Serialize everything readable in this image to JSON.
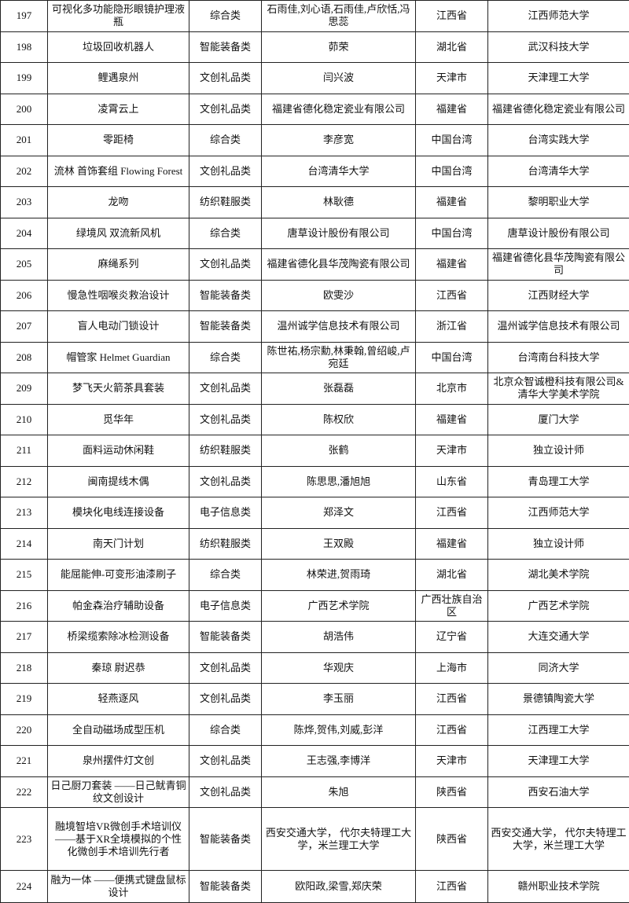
{
  "table": {
    "rows": [
      [
        197,
        "可视化多功能隐形眼镜护理液瓶",
        "综合类",
        "石雨佳,刘心语,石雨佳,卢欣恬,冯思蕊",
        "江西省",
        "江西师范大学"
      ],
      [
        198,
        "垃圾回收机器人",
        "智能装备类",
        "茆荣",
        "湖北省",
        "武汉科技大学"
      ],
      [
        199,
        "鲤遇泉州",
        "文创礼品类",
        "闫兴波",
        "天津市",
        "天津理工大学"
      ],
      [
        200,
        "凌霄云上",
        "文创礼品类",
        "福建省德化稳定瓷业有限公司",
        "福建省",
        "福建省德化稳定瓷业有限公司"
      ],
      [
        201,
        "零距椅",
        "综合类",
        "李彦宽",
        "中国台湾",
        "台湾实践大学"
      ],
      [
        202,
        "流林 首饰套组 Flowing Forest",
        "文创礼品类",
        "台湾清华大学",
        "中国台湾",
        "台湾清华大学"
      ],
      [
        203,
        "龙吻",
        "纺织鞋服类",
        "林耿德",
        "福建省",
        "黎明职业大学"
      ],
      [
        204,
        "绿境风 双流新风机",
        "综合类",
        "唐草设计股份有限公司",
        "中国台湾",
        "唐草设计股份有限公司"
      ],
      [
        205,
        "麻绳系列",
        "文创礼品类",
        "福建省德化县华茂陶瓷有限公司",
        "福建省",
        "福建省德化县华茂陶瓷有限公司"
      ],
      [
        206,
        "慢急性咽喉炎救治设计",
        "智能装备类",
        "欧雯沙",
        "江西省",
        "江西财经大学"
      ],
      [
        207,
        "盲人电动门锁设计",
        "智能装备类",
        "温州诚学信息技术有限公司",
        "浙江省",
        "温州诚学信息技术有限公司"
      ],
      [
        208,
        "帽管家 Helmet Guardian",
        "综合类",
        "陈世祐,杨宗勳,林秉翰,曾绍峻,卢宛廷",
        "中国台湾",
        "台湾南台科技大学"
      ],
      [
        209,
        "梦飞天火箭茶具套装",
        "文创礼品类",
        "张磊磊",
        "北京市",
        "北京众智诚橙科技有限公司&清华大学美术学院"
      ],
      [
        210,
        "觅华年",
        "文创礼品类",
        "陈权欣",
        "福建省",
        "厦门大学"
      ],
      [
        211,
        "面料运动休闲鞋",
        "纺织鞋服类",
        "张鹤",
        "天津市",
        "独立设计师"
      ],
      [
        212,
        "闽南提线木偶",
        "文创礼品类",
        "陈思思,潘旭旭",
        "山东省",
        "青岛理工大学"
      ],
      [
        213,
        "模块化电线连接设备",
        "电子信息类",
        "郑泽文",
        "江西省",
        "江西师范大学"
      ],
      [
        214,
        "南天门计划",
        "纺织鞋服类",
        "王双殿",
        "福建省",
        "独立设计师"
      ],
      [
        215,
        "能屈能伸-可变形油漆刷子",
        "综合类",
        "林荣进,贺雨琦",
        "湖北省",
        "湖北美术学院"
      ],
      [
        216,
        "帕金森治疗辅助设备",
        "电子信息类",
        "广西艺术学院",
        "广西壮族自治区",
        "广西艺术学院"
      ],
      [
        217,
        "桥梁缆索除冰检测设备",
        "智能装备类",
        "胡浩伟",
        "辽宁省",
        "大连交通大学"
      ],
      [
        218,
        "秦琼 尉迟恭",
        "文创礼品类",
        "华观庆",
        "上海市",
        "同济大学"
      ],
      [
        219,
        "轻燕逐风",
        "文创礼品类",
        "李玉丽",
        "江西省",
        "景德镇陶瓷大学"
      ],
      [
        220,
        "全自动磁场成型压机",
        "综合类",
        "陈烨,贺伟,刘威,彭洋",
        "江西省",
        "江西理工大学"
      ],
      [
        221,
        "泉州摆件灯文创",
        "文创礼品类",
        "王志强,李博洋",
        "天津市",
        "天津理工大学"
      ],
      [
        222,
        "日己厨刀套装 ——日己鱿青铜纹文创设计",
        "文创礼品类",
        "朱旭",
        "陕西省",
        "西安石油大学"
      ],
      [
        223,
        "融境智培VR微创手术培训仪——基于XR全境模拟的个性化微创手术培训先行者",
        "智能装备类",
        "西安交通大学， 代尔夫特理工大学，米兰理工大学",
        "陕西省",
        "西安交通大学， 代尔夫特理工大学，米兰理工大学"
      ],
      [
        224,
        "融为一体 ——便携式键盘鼠标设计",
        "智能装备类",
        "欧阳政,梁雪,郑庆荣",
        "江西省",
        "赣州职业技术学院"
      ]
    ]
  }
}
